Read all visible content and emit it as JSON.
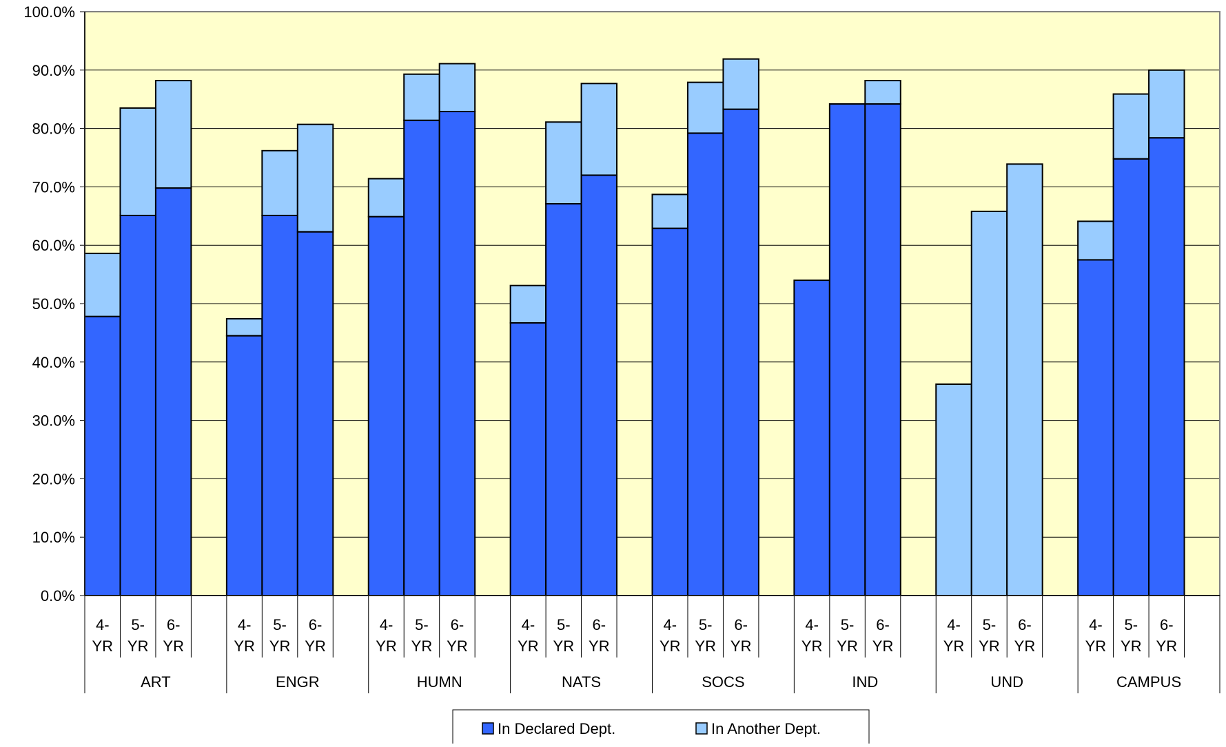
{
  "chart_data": {
    "type": "bar",
    "stacked": true,
    "groups": [
      "ART",
      "ENGR",
      "HUMN",
      "NATS",
      "SOCS",
      "IND",
      "UND",
      "CAMPUS"
    ],
    "subcategories": [
      {
        "top": "4-",
        "bottom": "YR"
      },
      {
        "top": "5-",
        "bottom": "YR"
      },
      {
        "top": "6-",
        "bottom": "YR"
      }
    ],
    "series": [
      {
        "name": "In Declared Dept.",
        "color": "#3366FF",
        "values": [
          [
            47.8,
            65.1,
            69.8
          ],
          [
            44.5,
            65.1,
            62.3
          ],
          [
            64.9,
            81.4,
            82.9
          ],
          [
            46.7,
            67.1,
            72.0
          ],
          [
            62.9,
            79.2,
            83.3
          ],
          [
            54.0,
            84.2,
            84.2
          ],
          [
            0.0,
            0.0,
            0.0
          ],
          [
            57.5,
            74.8,
            78.4
          ]
        ]
      },
      {
        "name": "In Another Dept.",
        "color": "#99CCFF",
        "values": [
          [
            10.8,
            18.4,
            18.4
          ],
          [
            2.9,
            11.1,
            18.4
          ],
          [
            6.5,
            7.9,
            8.2
          ],
          [
            6.4,
            14.0,
            15.7
          ],
          [
            5.8,
            8.7,
            8.6
          ],
          [
            0.0,
            0.0,
            4.0
          ],
          [
            36.2,
            65.8,
            73.9
          ],
          [
            6.6,
            11.1,
            11.6
          ]
        ]
      }
    ],
    "y_ticks": [
      "0.0%",
      "10.0%",
      "20.0%",
      "30.0%",
      "40.0%",
      "50.0%",
      "60.0%",
      "70.0%",
      "80.0%",
      "90.0%",
      "100.0%"
    ],
    "ylim": [
      0,
      100
    ],
    "grid": true,
    "legend_position": "bottom",
    "plot_background": "#FFFFCC"
  }
}
